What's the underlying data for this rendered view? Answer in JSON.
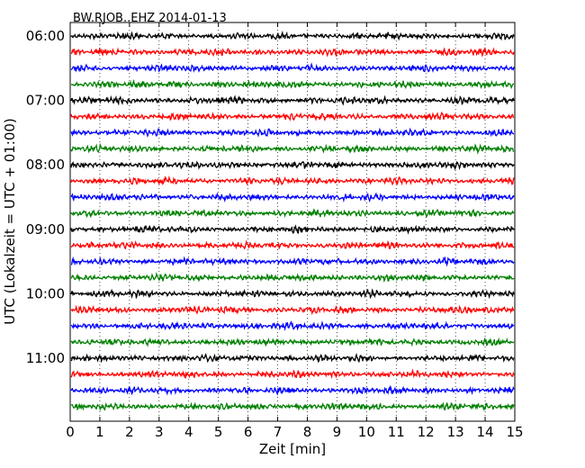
{
  "chart_data": {
    "type": "line",
    "title": "BW.RJOB..EHZ 2014-01-13",
    "xlabel": "Zeit  [min]",
    "ylabel": "UTC (Lokalzeit = UTC + 01:00)",
    "xlim": [
      0,
      15
    ],
    "x_ticks": [
      "0",
      "1",
      "2",
      "3",
      "4",
      "5",
      "6",
      "7",
      "8",
      "9",
      "10",
      "11",
      "12",
      "13",
      "14",
      "15"
    ],
    "y_ticks": [
      "06:00",
      "07:00",
      "08:00",
      "09:00",
      "10:00",
      "11:00"
    ],
    "grid": true,
    "trace_interval_min": 15,
    "trace_count": 24,
    "trace_colors": [
      "#000000",
      "#ff0000",
      "#0000ff",
      "#008000"
    ],
    "first_trace_start": "06:00",
    "last_trace_start": "11:45"
  }
}
